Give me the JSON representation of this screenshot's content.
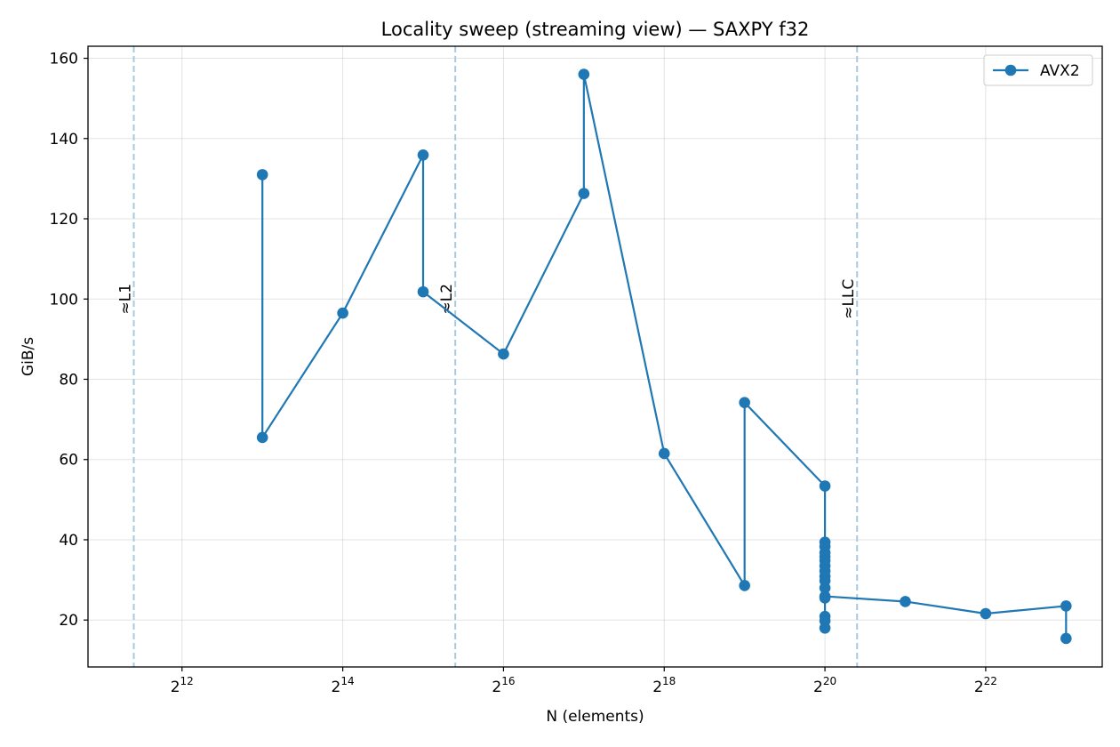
{
  "chart_data": {
    "type": "line",
    "title": "Locality sweep (streaming view) — SAXPY f32",
    "xlabel": "N (elements)",
    "ylabel": "GiB/s",
    "x_scale": "log2",
    "xlim_log2": [
      10.83,
      23.45
    ],
    "ylim": [
      8.3,
      163.0
    ],
    "x_ticks": [
      {
        "base": "2",
        "exp": "12",
        "log2": 12
      },
      {
        "base": "2",
        "exp": "14",
        "log2": 14
      },
      {
        "base": "2",
        "exp": "16",
        "log2": 16
      },
      {
        "base": "2",
        "exp": "18",
        "log2": 18
      },
      {
        "base": "2",
        "exp": "20",
        "log2": 20
      },
      {
        "base": "2",
        "exp": "22",
        "log2": 22
      }
    ],
    "y_ticks": [
      {
        "value": 20,
        "label": "20"
      },
      {
        "value": 40,
        "label": "40"
      },
      {
        "value": 60,
        "label": "60"
      },
      {
        "value": 80,
        "label": "80"
      },
      {
        "value": 100,
        "label": "100"
      },
      {
        "value": 120,
        "label": "120"
      },
      {
        "value": 140,
        "label": "140"
      },
      {
        "value": 160,
        "label": "160"
      }
    ],
    "grid": true,
    "legend_position": "top-right",
    "reference_lines": [
      {
        "label": "≈L1",
        "log2": 11.4
      },
      {
        "label": "≈L2",
        "log2": 15.4
      },
      {
        "label": "≈LLC",
        "log2": 20.4
      }
    ],
    "series": [
      {
        "name": "AVX2",
        "color": "#1f77b4",
        "marker": "circle",
        "points": [
          {
            "x": "2^13",
            "log2": 13,
            "y": 131.0
          },
          {
            "x": "2^13",
            "log2": 13,
            "y": 65.5
          },
          {
            "x": "2^14",
            "log2": 14,
            "y": 96.5
          },
          {
            "x": "2^15",
            "log2": 15,
            "y": 135.9
          },
          {
            "x": "2^15",
            "log2": 15,
            "y": 101.8
          },
          {
            "x": "2^16",
            "log2": 16,
            "y": 86.3
          },
          {
            "x": "2^17",
            "log2": 17,
            "y": 126.3
          },
          {
            "x": "2^17",
            "log2": 17,
            "y": 156.0
          },
          {
            "x": "2^18",
            "log2": 18,
            "y": 61.5
          },
          {
            "x": "2^19",
            "log2": 19,
            "y": 28.6
          },
          {
            "x": "2^19",
            "log2": 19,
            "y": 74.2
          },
          {
            "x": "2^20",
            "log2": 20,
            "y": 53.4
          },
          {
            "x": "2^20",
            "log2": 20,
            "y": 39.4
          },
          {
            "x": "2^20",
            "log2": 20,
            "y": 38.3
          },
          {
            "x": "2^20",
            "log2": 20,
            "y": 36.8
          },
          {
            "x": "2^20",
            "log2": 20,
            "y": 35.8
          },
          {
            "x": "2^20",
            "log2": 20,
            "y": 34.8
          },
          {
            "x": "2^20",
            "log2": 20,
            "y": 33.5
          },
          {
            "x": "2^20",
            "log2": 20,
            "y": 32.2
          },
          {
            "x": "2^20",
            "log2": 20,
            "y": 30.9
          },
          {
            "x": "2^20",
            "log2": 20,
            "y": 29.8
          },
          {
            "x": "2^20",
            "log2": 20,
            "y": 28.0
          },
          {
            "x": "2^20",
            "log2": 20,
            "y": 25.5
          },
          {
            "x": "2^20",
            "log2": 20,
            "y": 20.9
          },
          {
            "x": "2^20",
            "log2": 20,
            "y": 19.8
          },
          {
            "x": "2^20",
            "log2": 20,
            "y": 18.0
          },
          {
            "x": "2^20",
            "log2": 20,
            "y": 25.9
          },
          {
            "x": "2^21",
            "log2": 21,
            "y": 24.6
          },
          {
            "x": "2^22",
            "log2": 22,
            "y": 21.6
          },
          {
            "x": "2^23",
            "log2": 23,
            "y": 23.5
          },
          {
            "x": "2^23",
            "log2": 23,
            "y": 15.4
          }
        ]
      }
    ]
  }
}
